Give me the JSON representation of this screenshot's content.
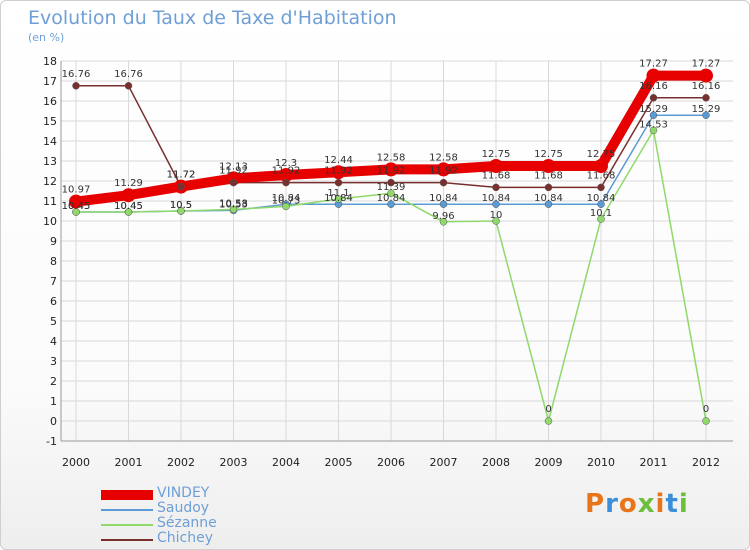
{
  "header": {
    "title": "Evolution du Taux de Taxe d'Habitation",
    "subtitle": "(en %)"
  },
  "logo": {
    "text": "Proxiti",
    "colors": [
      "#e8751a",
      "#3a8fd8",
      "#e8751a",
      "#6cbf3a",
      "#e8751a",
      "#3a8fd8",
      "#6cbf3a"
    ]
  },
  "chart_data": {
    "type": "line",
    "title": "Evolution du Taux de Taxe d'Habitation",
    "ylabel": "(en %)",
    "xlabel": "",
    "ylim": [
      -1,
      18
    ],
    "yticks": [
      "-1",
      "0",
      "1",
      "2",
      "3",
      "4",
      "5",
      "6",
      "7",
      "8",
      "9",
      "10",
      "11",
      "12",
      "13",
      "14",
      "15",
      "16",
      "17",
      "18"
    ],
    "categories": [
      "2000",
      "2001",
      "2002",
      "2003",
      "2004",
      "2005",
      "2006",
      "2007",
      "2008",
      "2009",
      "2010",
      "2011",
      "2012"
    ],
    "grid": true,
    "legend_position": "bottom-left",
    "series": [
      {
        "name": "VINDEY",
        "color": "#e60000",
        "style": "thick",
        "values": [
          10.97,
          11.29,
          11.72,
          12.13,
          12.3,
          12.44,
          12.58,
          12.58,
          12.75,
          12.75,
          12.75,
          17.27,
          17.27
        ],
        "labels": [
          "10.97",
          "11.29",
          "11.72",
          "12.13",
          "12.3",
          "12.44",
          "12.58",
          "12.58",
          "12.75",
          "12.75",
          "12.75",
          "17.27",
          "17.27"
        ]
      },
      {
        "name": "Saudoy",
        "color": "#5b9bd5",
        "style": "thin",
        "values": [
          10.45,
          10.45,
          10.5,
          10.53,
          10.84,
          10.84,
          10.84,
          10.84,
          10.84,
          10.84,
          10.84,
          15.29,
          15.29
        ],
        "labels": [
          "10.45",
          "10.45",
          "10.5",
          "10.53",
          "10.84",
          "10.84",
          "10.84",
          "10.84",
          "10.84",
          "10.84",
          "10.84",
          "15.29",
          "15.29"
        ]
      },
      {
        "name": "Sézanne",
        "color": "#8fd96a",
        "style": "thin",
        "values": [
          10.45,
          10.45,
          10.5,
          10.58,
          10.73,
          11.1,
          11.39,
          9.96,
          10,
          0,
          10.1,
          14.53,
          0
        ],
        "labels": [
          "10.45",
          "10.45",
          "10.5",
          "10.58",
          "10.73",
          "11.1",
          "11.39",
          "9.96",
          "10",
          "0",
          "10.1",
          "14.53",
          "0"
        ]
      },
      {
        "name": "Chichey",
        "color": "#7a2f2f",
        "style": "thin",
        "values": [
          16.76,
          16.76,
          11.72,
          11.92,
          11.92,
          11.92,
          11.92,
          11.92,
          11.68,
          11.68,
          11.68,
          16.16,
          16.16
        ],
        "labels": [
          "16.76",
          "16.76",
          "11.72",
          "11.92",
          "11.92",
          "11.92",
          "11.92",
          "11.92",
          "11.68",
          "11.68",
          "11.68",
          "16.16",
          "16.16"
        ]
      }
    ]
  }
}
